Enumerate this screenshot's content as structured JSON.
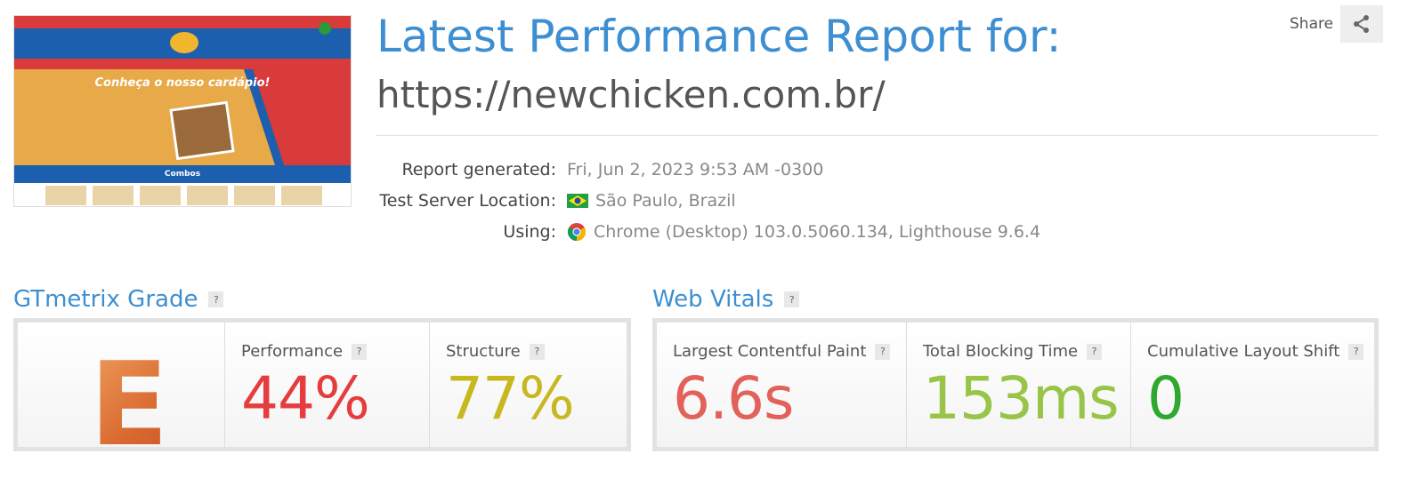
{
  "header": {
    "title": "Latest Performance Report for:",
    "url": "https://newchicken.com.br/",
    "share_label": "Share"
  },
  "thumbnail": {
    "headline": "Conheça o nosso cardápio!",
    "section": "Combos"
  },
  "info": [
    {
      "label": "Report generated:",
      "value": "Fri, Jun 2, 2023 9:53 AM -0300",
      "icon": "none"
    },
    {
      "label": "Test Server Location:",
      "value": "São Paulo, Brazil",
      "icon": "brazil-flag-icon"
    },
    {
      "label": "Using:",
      "value": "Chrome (Desktop) 103.0.5060.134, Lighthouse 9.6.4",
      "icon": "chrome-icon"
    }
  ],
  "grade": {
    "title": "GTmetrix Grade",
    "letter": "E",
    "performance_label": "Performance",
    "performance": "44%",
    "structure_label": "Structure",
    "structure": "77%"
  },
  "vitals": {
    "title": "Web Vitals",
    "lcp_label": "Largest Contentful Paint",
    "lcp": "6.6s",
    "tbt_label": "Total Blocking Time",
    "tbt": "153ms",
    "cls_label": "Cumulative Layout Shift",
    "cls": "0"
  },
  "help": "?",
  "colors": {
    "accent": "#3d8fd1",
    "performance": "#e53d3d",
    "structure": "#c8b820",
    "lcp": "#e2615a",
    "tbt": "#98c447",
    "cls": "#2ea82e"
  }
}
